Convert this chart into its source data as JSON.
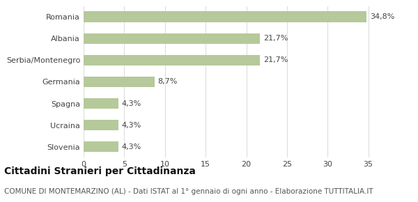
{
  "categories": [
    "Romania",
    "Albania",
    "Serbia/Montenegro",
    "Germania",
    "Spagna",
    "Ucraina",
    "Slovenia"
  ],
  "values": [
    34.8,
    21.7,
    21.7,
    8.7,
    4.3,
    4.3,
    4.3
  ],
  "labels": [
    "34,8%",
    "21,7%",
    "21,7%",
    "8,7%",
    "4,3%",
    "4,3%",
    "4,3%"
  ],
  "bar_color": "#b5c99a",
  "background_color": "#ffffff",
  "xlim": [
    0,
    37
  ],
  "xticks": [
    0,
    5,
    10,
    15,
    20,
    25,
    30,
    35
  ],
  "title_bold": "Cittadini Stranieri per Cittadinanza",
  "subtitle": "COMUNE DI MONTEMARZINO (AL) - Dati ISTAT al 1° gennaio di ogni anno - Elaborazione TUTTITALIA.IT",
  "grid_color": "#dddddd",
  "title_fontsize": 10,
  "subtitle_fontsize": 7.5,
  "label_fontsize": 8,
  "tick_fontsize": 8,
  "bar_height": 0.5
}
